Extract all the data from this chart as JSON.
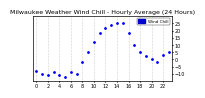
{
  "title": "Milwaukee Weather Wind Chill - Hourly Average (24 Hours)",
  "bg_color": "#ffffff",
  "plot_bg": "#ffffff",
  "line_color": "#0000ff",
  "marker": ".",
  "marker_size": 2,
  "x_hours": [
    0,
    1,
    2,
    3,
    4,
    5,
    6,
    7,
    8,
    9,
    10,
    11,
    12,
    13,
    14,
    15,
    16,
    17,
    18,
    19,
    20,
    21,
    22,
    23
  ],
  "y_values": [
    -8,
    -10,
    -11,
    -9,
    -11,
    -12,
    -9,
    -10,
    -2,
    5,
    12,
    18,
    22,
    24,
    25,
    25,
    18,
    10,
    5,
    2,
    0,
    -2,
    3,
    5
  ],
  "ylim": [
    -15,
    30
  ],
  "ytick_right": true,
  "grid_color": "#aaaaaa",
  "grid_style": ":",
  "legend_color": "#0000cc",
  "title_fontsize": 4.5,
  "tick_fontsize": 3.5,
  "border_color": "#000000"
}
